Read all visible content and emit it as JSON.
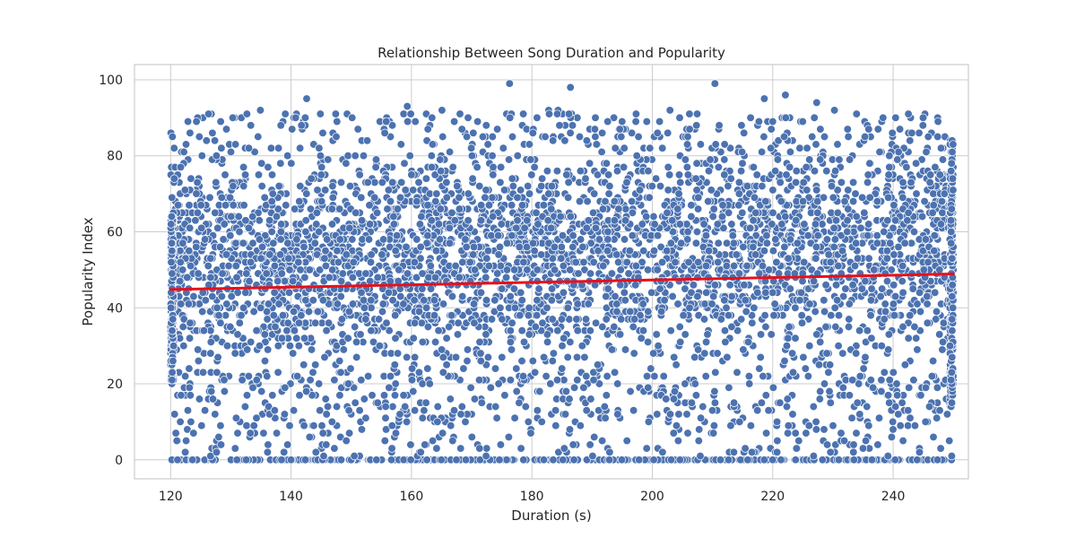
{
  "chart_data": {
    "type": "scatter",
    "title": "Relationship Between Song Duration and Popularity",
    "xlabel": "Duration (s)",
    "ylabel": "Popularity Index",
    "xlim": [
      114,
      252.5
    ],
    "ylim": [
      -5,
      104
    ],
    "x_ticks": [
      120,
      140,
      160,
      180,
      200,
      220,
      240
    ],
    "y_ticks": [
      0,
      20,
      40,
      60,
      80,
      100
    ],
    "grid": true,
    "point_color": "#4c72b0",
    "point_edge_color": "#ffffff",
    "trend_color": "#e8101a",
    "x_range": [
      120,
      250
    ],
    "point_density": "very dense; several thousand songs spread across the full duration range",
    "y_distribution": "points concentrated between roughly 20 and 85, sparser tail down to about 1, and a solid row of songs at 0 popularity",
    "regression_line": {
      "x": [
        120,
        250
      ],
      "y": [
        44.8,
        48.9
      ]
    },
    "highlighted_outliers": [
      {
        "x": 120.3,
        "y": 85
      },
      {
        "x": 142.6,
        "y": 95
      },
      {
        "x": 159.3,
        "y": 93
      },
      {
        "x": 176.3,
        "y": 99
      },
      {
        "x": 186.4,
        "y": 98
      },
      {
        "x": 210.4,
        "y": 99
      },
      {
        "x": 218.6,
        "y": 95
      },
      {
        "x": 222.1,
        "y": 96
      },
      {
        "x": 227.3,
        "y": 94
      },
      {
        "x": 240.4,
        "y": 90
      }
    ]
  }
}
